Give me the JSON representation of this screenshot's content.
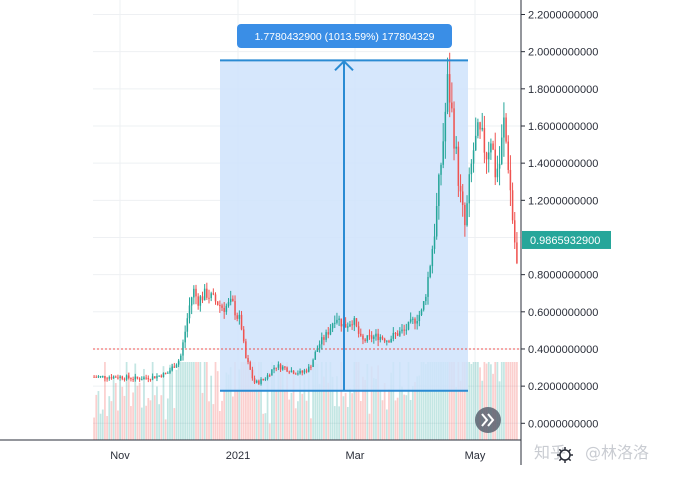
{
  "chart_data": {
    "type": "candlestick",
    "time_labels": [
      "Nov",
      "2021",
      "Mar",
      "May"
    ],
    "y_ticks": [
      "2.2000000000",
      "2.0000000000",
      "1.8000000000",
      "1.6000000000",
      "1.4000000000",
      "1.2000000000",
      "0.8000000000",
      "0.6000000000",
      "0.4000000000",
      "0.2000000000",
      "0.0000000000"
    ],
    "ylim": [
      -0.1,
      2.25
    ],
    "last_price": 0.98659329,
    "last_price_label": "0.9865932900",
    "prev_close_level": 0.4,
    "measure": {
      "label": "1.7780432900 (1013.59%) 177804329",
      "from_price": 0.1754,
      "to_price": 1.9534
    },
    "price_path": [
      [
        0,
        0.25
      ],
      [
        6,
        0.25
      ],
      [
        10,
        0.24
      ],
      [
        14,
        0.25
      ],
      [
        17,
        0.27
      ],
      [
        20,
        0.35
      ],
      [
        21,
        0.48
      ],
      [
        22,
        0.62
      ],
      [
        23,
        0.72
      ],
      [
        24,
        0.66
      ],
      [
        26,
        0.7
      ],
      [
        28,
        0.66
      ],
      [
        30,
        0.62
      ],
      [
        32,
        0.65
      ],
      [
        33,
        0.58
      ],
      [
        34,
        0.55
      ],
      [
        35,
        0.36
      ],
      [
        36,
        0.3
      ],
      [
        37,
        0.22
      ],
      [
        38,
        0.22
      ],
      [
        40,
        0.25
      ],
      [
        42,
        0.31
      ],
      [
        44,
        0.3
      ],
      [
        46,
        0.28
      ],
      [
        48,
        0.27
      ],
      [
        50,
        0.3
      ],
      [
        51,
        0.36
      ],
      [
        52,
        0.42
      ],
      [
        54,
        0.48
      ],
      [
        56,
        0.58
      ],
      [
        58,
        0.52
      ],
      [
        60,
        0.56
      ],
      [
        62,
        0.44
      ],
      [
        64,
        0.46
      ],
      [
        66,
        0.47
      ],
      [
        68,
        0.45
      ],
      [
        70,
        0.48
      ],
      [
        72,
        0.5
      ],
      [
        74,
        0.55
      ],
      [
        76,
        0.6
      ],
      [
        77,
        0.72
      ],
      [
        78,
        0.88
      ],
      [
        79,
        1.05
      ],
      [
        80,
        1.3
      ],
      [
        81,
        1.55
      ],
      [
        82,
        1.85
      ],
      [
        83,
        1.65
      ],
      [
        84,
        1.42
      ],
      [
        85,
        1.2
      ],
      [
        86,
        1.05
      ],
      [
        87,
        1.3
      ],
      [
        88,
        1.48
      ],
      [
        89,
        1.55
      ],
      [
        90,
        1.52
      ],
      [
        91,
        1.45
      ],
      [
        92,
        1.55
      ],
      [
        93,
        1.35
      ],
      [
        94,
        1.4
      ],
      [
        95,
        1.62
      ],
      [
        96,
        1.4
      ],
      [
        97,
        1.1
      ],
      [
        98,
        0.85
      ]
    ],
    "grid": true
  },
  "watermark": {
    "zhihu": "知乎",
    "author": "@林洛洛"
  },
  "icons": {
    "scroll_right": "double-chevron-right-icon",
    "settings": "gear-icon"
  },
  "colors": {
    "up": "#26a69a",
    "down": "#ef5350",
    "measure_fill": "#cfe3fb",
    "measure_line": "#2a8bd3",
    "label_bg": "#3a8ee6",
    "price_badge": "#26a69a"
  }
}
